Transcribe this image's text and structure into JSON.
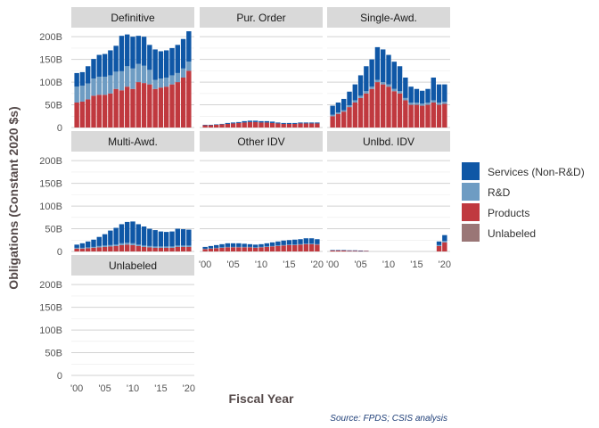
{
  "chart_data": {
    "type": "bar",
    "stacked": true,
    "facets": [
      "Definitive",
      "Pur. Order",
      "Single-Awd.",
      "Multi-Awd.",
      "Other IDV",
      "Unlbd. IDV",
      "Unlabeled"
    ],
    "x": [
      2000,
      2001,
      2002,
      2003,
      2004,
      2005,
      2006,
      2007,
      2008,
      2009,
      2010,
      2011,
      2012,
      2013,
      2014,
      2015,
      2016,
      2017,
      2018,
      2019,
      2020
    ],
    "x_tick_values": [
      2000,
      2005,
      2010,
      2015,
      2020
    ],
    "x_tick_labels": [
      "'00",
      "'05",
      "'10",
      "'15",
      "'20"
    ],
    "y_ticks": [
      0,
      50,
      100,
      150,
      200
    ],
    "y_tick_labels": [
      "0",
      "50B",
      "100B",
      "150B",
      "200B"
    ],
    "ylim": [
      0,
      220
    ],
    "xlabel": "Fiscal Year",
    "ylabel": "Obligations (Constant 2020 $s)",
    "caption": "Source: FPDS; CSIS analysis",
    "legend_position": "right",
    "legend": [
      {
        "name": "Services (Non-R&D)",
        "color": "#0f57a6"
      },
      {
        "name": "R&D",
        "color": "#6e9cc3"
      },
      {
        "name": "Products",
        "color": "#c0393f"
      },
      {
        "name": "Unlabeled",
        "color": "#9a7676"
      }
    ],
    "series_order": [
      "Unlabeled",
      "Products",
      "R&D",
      "Services (Non-R&D)"
    ],
    "panels": [
      {
        "facet": "Definitive",
        "series": [
          {
            "name": "Unlabeled",
            "values": [
              0,
              0,
              0,
              0,
              0,
              0,
              0,
              0,
              0,
              0,
              0,
              0,
              0,
              0,
              0,
              0,
              0,
              0,
              0,
              0,
              0
            ]
          },
          {
            "name": "Products",
            "values": [
              55,
              57,
              62,
              70,
              72,
              72,
              75,
              85,
              82,
              90,
              85,
              100,
              98,
              95,
              85,
              88,
              90,
              95,
              100,
              110,
              125
            ]
          },
          {
            "name": "R&D",
            "values": [
              35,
              35,
              35,
              38,
              40,
              40,
              40,
              38,
              42,
              45,
              45,
              40,
              38,
              32,
              20,
              20,
              20,
              20,
              20,
              20,
              20
            ]
          },
          {
            "name": "Services (Non-R&D)",
            "values": [
              30,
              30,
              38,
              43,
              48,
              50,
              55,
              57,
              78,
              70,
              70,
              62,
              64,
              55,
              67,
              60,
              60,
              60,
              62,
              65,
              67
            ]
          }
        ]
      },
      {
        "facet": "Pur. Order",
        "series": [
          {
            "name": "Unlabeled",
            "values": [
              0,
              0,
              0,
              0,
              0,
              0,
              0,
              0,
              0,
              0,
              0,
              0,
              0,
              0,
              0,
              0,
              0,
              0,
              0,
              0,
              0
            ]
          },
          {
            "name": "Products",
            "values": [
              5,
              5,
              6,
              7,
              8,
              9,
              10,
              11,
              12,
              12,
              11,
              11,
              10,
              9,
              8,
              8,
              8,
              9,
              9,
              9,
              9
            ]
          },
          {
            "name": "R&D",
            "values": [
              0,
              0,
              0,
              0,
              0,
              0,
              0,
              0,
              0,
              0,
              0,
              0,
              0,
              0,
              0,
              0,
              0,
              0,
              0,
              0,
              0
            ]
          },
          {
            "name": "Services (Non-R&D)",
            "values": [
              1,
              1,
              1,
              1,
              2,
              2,
              2,
              3,
              3,
              3,
              3,
              3,
              3,
              2,
              2,
              2,
              2,
              2,
              2,
              2,
              2
            ]
          }
        ]
      },
      {
        "facet": "Single-Awd.",
        "series": [
          {
            "name": "Unlabeled",
            "values": [
              0,
              0,
              0,
              0,
              0,
              0,
              0,
              0,
              0,
              0,
              0,
              0,
              0,
              0,
              0,
              0,
              0,
              0,
              0,
              0,
              0
            ]
          },
          {
            "name": "Products",
            "values": [
              25,
              30,
              35,
              45,
              55,
              65,
              75,
              85,
              100,
              95,
              90,
              80,
              75,
              60,
              50,
              50,
              48,
              50,
              55,
              50,
              52
            ]
          },
          {
            "name": "R&D",
            "values": [
              3,
              3,
              3,
              4,
              5,
              5,
              5,
              5,
              5,
              5,
              5,
              5,
              5,
              5,
              5,
              5,
              5,
              5,
              5,
              5,
              5
            ]
          },
          {
            "name": "Services (Non-R&D)",
            "values": [
              20,
              22,
              25,
              30,
              35,
              45,
              55,
              60,
              72,
              72,
              65,
              60,
              55,
              45,
              35,
              30,
              28,
              30,
              50,
              40,
              38
            ]
          }
        ]
      },
      {
        "facet": "Multi-Awd.",
        "series": [
          {
            "name": "Unlabeled",
            "values": [
              0,
              0,
              0,
              0,
              0,
              0,
              0,
              0,
              0,
              0,
              0,
              0,
              0,
              0,
              0,
              0,
              0,
              0,
              0,
              0,
              0
            ]
          },
          {
            "name": "Products",
            "values": [
              6,
              6,
              7,
              8,
              9,
              10,
              11,
              12,
              14,
              15,
              14,
              12,
              10,
              9,
              8,
              8,
              8,
              8,
              10,
              10,
              10
            ]
          },
          {
            "name": "R&D",
            "values": [
              2,
              2,
              2,
              2,
              3,
              3,
              3,
              3,
              4,
              4,
              4,
              3,
              3,
              3,
              3,
              3,
              3,
              3,
              3,
              3,
              3
            ]
          },
          {
            "name": "Services (Non-R&D)",
            "values": [
              7,
              10,
              13,
              16,
              20,
              25,
              32,
              37,
              42,
              46,
              48,
              45,
              42,
              38,
              36,
              33,
              32,
              33,
              37,
              36,
              35
            ]
          }
        ]
      },
      {
        "facet": "Other IDV",
        "series": [
          {
            "name": "Unlabeled",
            "values": [
              0,
              0,
              0,
              0,
              0,
              0,
              0,
              0,
              0,
              0,
              0,
              0,
              0,
              0,
              0,
              0,
              0,
              0,
              0,
              0,
              0
            ]
          },
          {
            "name": "Products",
            "values": [
              5,
              6,
              7,
              8,
              9,
              9,
              9,
              9,
              9,
              8,
              9,
              10,
              11,
              12,
              13,
              14,
              14,
              15,
              16,
              16,
              15
            ]
          },
          {
            "name": "R&D",
            "values": [
              1,
              1,
              1,
              1,
              1,
              1,
              1,
              1,
              1,
              1,
              1,
              1,
              1,
              1,
              1,
              1,
              1,
              1,
              1,
              1,
              1
            ]
          },
          {
            "name": "Services (Non-R&D)",
            "values": [
              4,
              5,
              6,
              7,
              8,
              8,
              8,
              7,
              6,
              6,
              6,
              7,
              8,
              9,
              10,
              10,
              11,
              11,
              12,
              12,
              11
            ]
          }
        ]
      },
      {
        "facet": "Unlbd. IDV",
        "series": [
          {
            "name": "Unlabeled",
            "values": [
              0,
              0,
              0,
              0,
              0,
              0,
              0,
              0,
              0,
              0,
              0,
              0,
              0,
              0,
              0,
              0,
              0,
              0,
              0,
              0,
              0
            ]
          },
          {
            "name": "Products",
            "values": [
              2,
              2,
              2,
              1.5,
              1.5,
              1,
              1,
              0,
              0,
              0,
              0,
              0,
              0,
              0,
              0,
              0,
              0,
              0,
              0,
              12,
              20
            ]
          },
          {
            "name": "R&D",
            "values": [
              0,
              0,
              0,
              0,
              0,
              0,
              0,
              0,
              0,
              0,
              0,
              0,
              0,
              0,
              0,
              0,
              0,
              0,
              0,
              2,
              3
            ]
          },
          {
            "name": "Services (Non-R&D)",
            "values": [
              1,
              1,
              1,
              1,
              1,
              1,
              0.5,
              0,
              0,
              0,
              0,
              0,
              0,
              0,
              0,
              0,
              0,
              0,
              0,
              8,
              13
            ]
          }
        ]
      },
      {
        "facet": "Unlabeled",
        "series": [
          {
            "name": "Unlabeled",
            "values": [
              0,
              0,
              0,
              0,
              0,
              0,
              0,
              0,
              0,
              0,
              0,
              0,
              0,
              0,
              0,
              0,
              0,
              0,
              0,
              0,
              0
            ]
          },
          {
            "name": "Products",
            "values": [
              0,
              0,
              0,
              0,
              0,
              0,
              0,
              0,
              0,
              0,
              0,
              0,
              0,
              0,
              0,
              0,
              0,
              0,
              0,
              0,
              0
            ]
          },
          {
            "name": "R&D",
            "values": [
              0,
              0,
              0,
              0,
              0,
              0,
              0,
              0,
              0,
              0,
              0,
              0,
              0,
              0,
              0,
              0,
              0,
              0,
              0,
              0,
              0
            ]
          },
          {
            "name": "Services (Non-R&D)",
            "values": [
              0,
              0,
              0,
              0,
              0,
              0,
              0,
              0,
              0,
              0,
              0,
              0,
              0,
              0,
              0,
              0,
              0,
              0,
              0,
              0,
              0
            ]
          }
        ]
      }
    ]
  }
}
